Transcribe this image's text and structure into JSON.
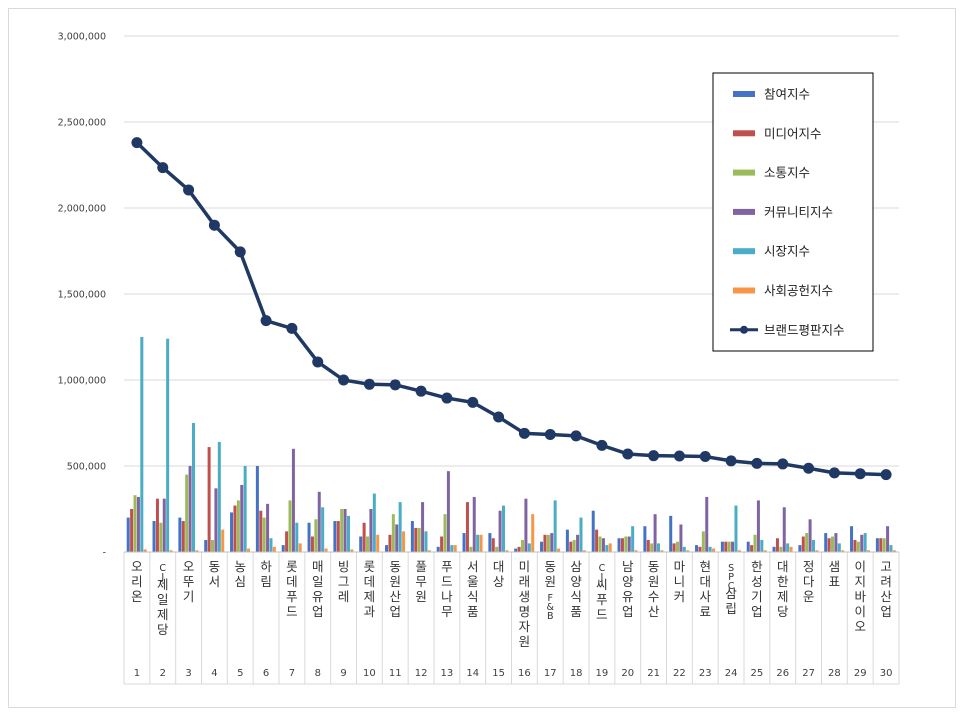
{
  "chart_data": {
    "type": "bar",
    "title": "",
    "xlabel": "",
    "ylabel": "",
    "ylim": [
      0,
      3000000
    ],
    "yticks": [
      0,
      500000,
      1000000,
      1500000,
      2000000,
      2500000,
      3000000
    ],
    "ytick_labels": [
      "-",
      "500,000",
      "1,000,000",
      "1,500,000",
      "2,000,000",
      "2,500,000",
      "3,000,000"
    ],
    "grid": true,
    "legend_position": "top-right",
    "categories": [
      "오리온",
      "CJ제일제당",
      "오뚜기",
      "동서",
      "농심",
      "하림",
      "롯데푸드",
      "매일유업",
      "빙그레",
      "롯데제과",
      "동원산업",
      "풀무원",
      "푸드나무",
      "서울식품",
      "대상",
      "미래생명자원",
      "동원F&B",
      "삼양식품",
      "CJ씨푸드",
      "남양유업",
      "동원수산",
      "마니커",
      "현대사료",
      "SPC삼립",
      "한성기업",
      "대한제당",
      "정다운",
      "샘표",
      "이지바이오",
      "고려산업"
    ],
    "ranks": [
      "1",
      "2",
      "3",
      "4",
      "5",
      "6",
      "7",
      "8",
      "9",
      "10",
      "11",
      "12",
      "13",
      "14",
      "15",
      "16",
      "17",
      "18",
      "19",
      "20",
      "21",
      "22",
      "23",
      "24",
      "25",
      "26",
      "27",
      "28",
      "29",
      "30"
    ],
    "series": [
      {
        "name": "참여지수",
        "kind": "bar",
        "color": "#4472c4",
        "values": [
          200000,
          180000,
          200000,
          70000,
          230000,
          500000,
          40000,
          170000,
          180000,
          90000,
          40000,
          180000,
          30000,
          110000,
          110000,
          20000,
          60000,
          130000,
          240000,
          80000,
          150000,
          210000,
          40000,
          60000,
          60000,
          30000,
          40000,
          110000,
          150000,
          80000
        ]
      },
      {
        "name": "미디어지수",
        "kind": "bar",
        "color": "#c0504d",
        "values": [
          250000,
          310000,
          180000,
          610000,
          270000,
          240000,
          120000,
          90000,
          180000,
          170000,
          100000,
          140000,
          90000,
          290000,
          80000,
          30000,
          100000,
          60000,
          130000,
          80000,
          70000,
          50000,
          30000,
          60000,
          40000,
          80000,
          90000,
          80000,
          70000,
          80000
        ]
      },
      {
        "name": "소통지수",
        "kind": "bar",
        "color": "#9bbb59",
        "values": [
          330000,
          170000,
          450000,
          70000,
          300000,
          200000,
          300000,
          190000,
          250000,
          90000,
          220000,
          140000,
          220000,
          30000,
          30000,
          70000,
          100000,
          70000,
          90000,
          90000,
          50000,
          60000,
          120000,
          60000,
          100000,
          30000,
          110000,
          90000,
          60000,
          80000
        ]
      },
      {
        "name": "커뮤니티지수",
        "kind": "bar",
        "color": "#8064a2",
        "values": [
          320000,
          310000,
          500000,
          370000,
          390000,
          280000,
          600000,
          350000,
          250000,
          250000,
          160000,
          290000,
          470000,
          320000,
          240000,
          310000,
          110000,
          100000,
          80000,
          90000,
          220000,
          160000,
          320000,
          60000,
          300000,
          260000,
          190000,
          110000,
          100000,
          150000
        ]
      },
      {
        "name": "시장지수",
        "kind": "bar",
        "color": "#4bacc6",
        "values": [
          1250000,
          1240000,
          750000,
          640000,
          500000,
          80000,
          170000,
          260000,
          210000,
          340000,
          290000,
          120000,
          40000,
          100000,
          270000,
          50000,
          300000,
          200000,
          40000,
          150000,
          50000,
          30000,
          30000,
          270000,
          70000,
          50000,
          70000,
          50000,
          110000,
          40000
        ]
      },
      {
        "name": "사회공헌지수",
        "kind": "bar",
        "color": "#f79646",
        "values": [
          15000,
          10000,
          10000,
          130000,
          20000,
          30000,
          50000,
          20000,
          15000,
          100000,
          120000,
          10000,
          40000,
          100000,
          10000,
          220000,
          20000,
          10000,
          50000,
          10000,
          10000,
          10000,
          20000,
          10000,
          10000,
          30000,
          10000,
          10000,
          10000,
          10000
        ]
      },
      {
        "name": "브랜드평판지수",
        "kind": "line",
        "color": "#1f3864",
        "values": [
          2380000,
          2235000,
          2105000,
          1900000,
          1745000,
          1345000,
          1300000,
          1105000,
          1000000,
          975000,
          972000,
          935000,
          895000,
          870000,
          785000,
          690000,
          683000,
          675000,
          620000,
          570000,
          560000,
          558000,
          555000,
          530000,
          515000,
          512000,
          487000,
          460000,
          455000,
          450000
        ]
      }
    ]
  }
}
